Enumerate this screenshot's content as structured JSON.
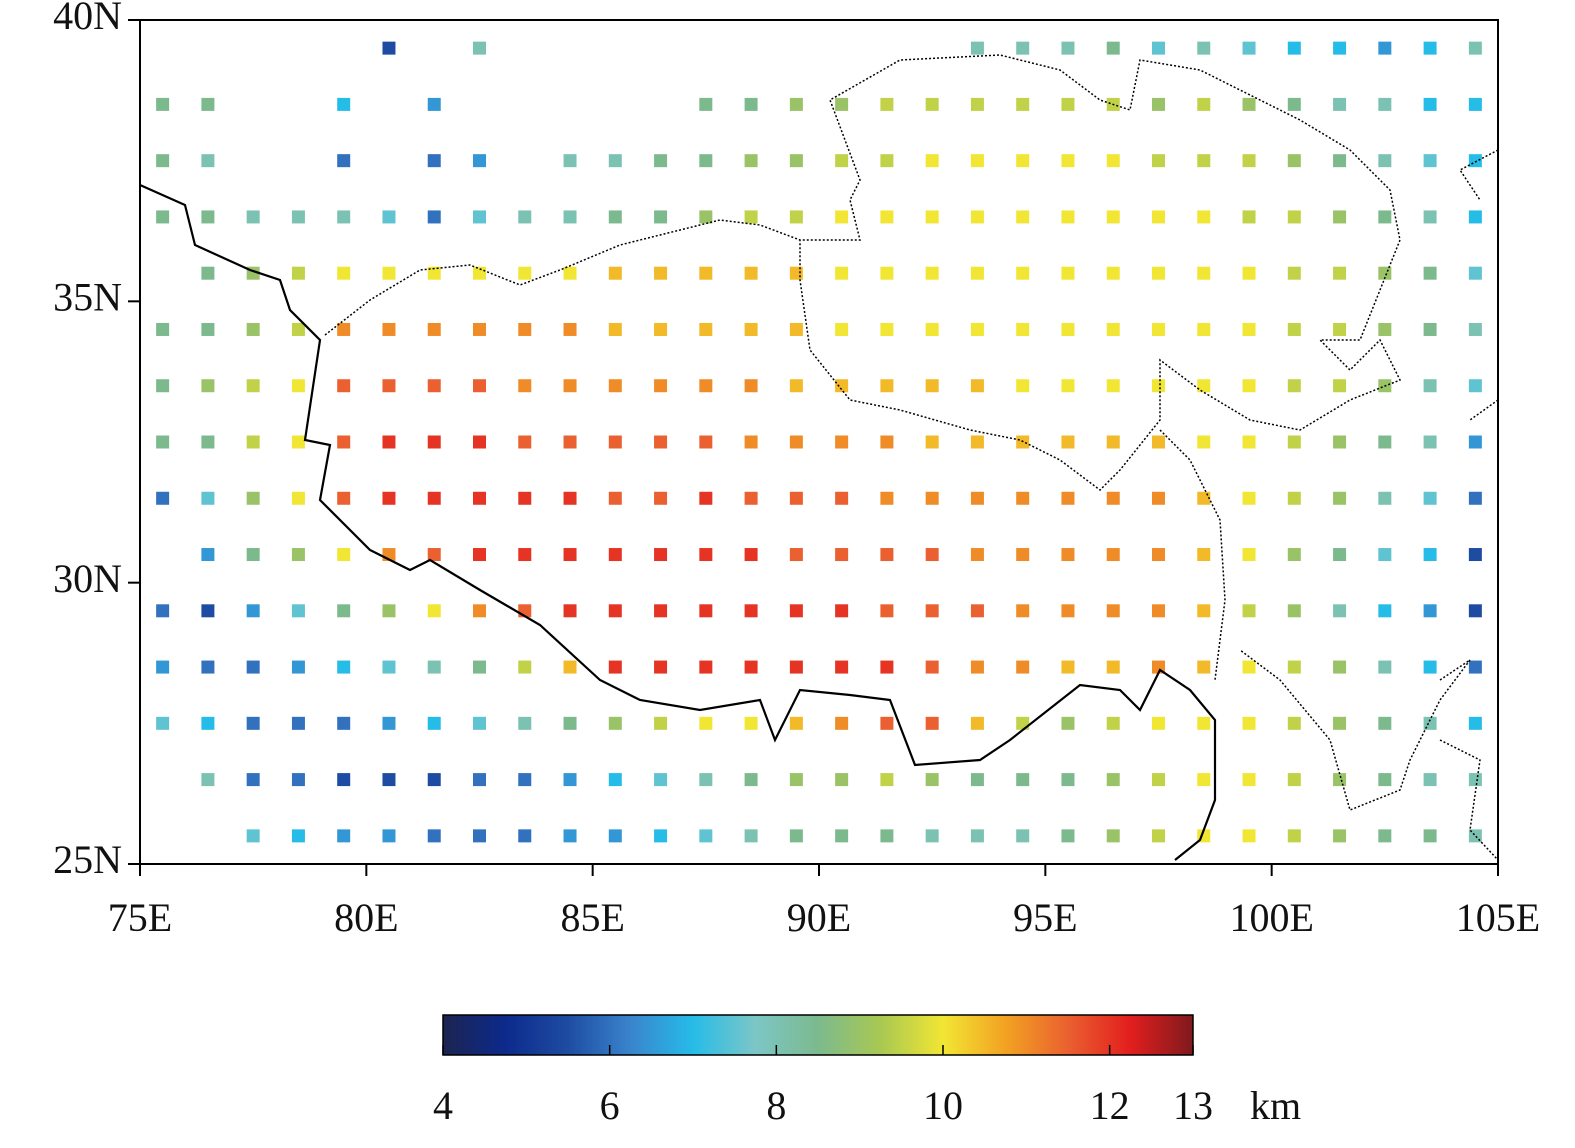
{
  "chart_data": {
    "type": "grid_map",
    "xlim": [
      75,
      105
    ],
    "ylim": [
      25,
      40
    ],
    "xticks": [
      {
        "value": 75,
        "label": "75E"
      },
      {
        "value": 80,
        "label": "80E"
      },
      {
        "value": 85,
        "label": "85E"
      },
      {
        "value": 90,
        "label": "90E"
      },
      {
        "value": 95,
        "label": "95E"
      },
      {
        "value": 100,
        "label": "100E"
      },
      {
        "value": 105,
        "label": "105E"
      }
    ],
    "yticks": [
      {
        "value": 25,
        "label": "25N"
      },
      {
        "value": 30,
        "label": "30N"
      },
      {
        "value": 35,
        "label": "35N"
      },
      {
        "value": 40,
        "label": "40N"
      }
    ],
    "x": [
      75.5,
      76.5,
      77.5,
      78.5,
      79.5,
      80.5,
      81.5,
      82.5,
      83.5,
      84.5,
      85.5,
      86.5,
      87.5,
      88.5,
      89.5,
      90.5,
      91.5,
      92.5,
      93.5,
      94.5,
      95.5,
      96.5,
      97.5,
      98.5,
      99.5,
      100.5,
      101.5,
      102.5,
      103.5,
      104.5
    ],
    "y": [
      39.5,
      38.5,
      37.5,
      36.5,
      35.5,
      34.5,
      33.5,
      32.5,
      31.5,
      30.5,
      29.5,
      28.5,
      27.5,
      26.5,
      25.5
    ],
    "values": [
      [
        null,
        null,
        null,
        null,
        null,
        5.5,
        null,
        8,
        null,
        null,
        null,
        null,
        null,
        null,
        null,
        null,
        null,
        null,
        8,
        8,
        8,
        8.5,
        7.5,
        8,
        7.5,
        7,
        7,
        6.5,
        7,
        8
      ],
      [
        8.5,
        8.5,
        null,
        null,
        7,
        null,
        6.5,
        null,
        null,
        null,
        null,
        null,
        8.5,
        8.5,
        9,
        9,
        9.5,
        9.5,
        9.5,
        9.5,
        9.5,
        9.5,
        9,
        9.5,
        9,
        8.5,
        8,
        8,
        7,
        7
      ],
      [
        8.5,
        8,
        null,
        null,
        6,
        null,
        6,
        6.5,
        null,
        8,
        8,
        8.5,
        8.5,
        9,
        9,
        9.5,
        9.5,
        10,
        10,
        10,
        10,
        10,
        9.5,
        9.5,
        9.5,
        9,
        8.5,
        8,
        7.5,
        7
      ],
      [
        8.5,
        8.5,
        8,
        8,
        8,
        7.5,
        6,
        7.5,
        8,
        8,
        8.5,
        8.5,
        9,
        9.5,
        9.5,
        10,
        10,
        10,
        10,
        10,
        10,
        10,
        10,
        10,
        9.5,
        9.5,
        9,
        8.5,
        8,
        7
      ],
      [
        null,
        8.5,
        9,
        9.5,
        10,
        10,
        10,
        10,
        10,
        10,
        10.5,
        10.5,
        10.5,
        10.5,
        10.5,
        10,
        10,
        10,
        10,
        10,
        10,
        10,
        10,
        10,
        10,
        9.5,
        9.5,
        9,
        8.5,
        7.5
      ],
      [
        8.5,
        8.5,
        9,
        9.5,
        11,
        11,
        11,
        11,
        11,
        11,
        10.5,
        10.5,
        10.5,
        10.5,
        10.5,
        10,
        10,
        10,
        10,
        10,
        10,
        10,
        10,
        10,
        10,
        9.5,
        9.5,
        9,
        8.5,
        8
      ],
      [
        8.5,
        9,
        9.5,
        10,
        11.5,
        11.5,
        11.5,
        11.5,
        11,
        11,
        11,
        11,
        11,
        11,
        10.5,
        10.5,
        10.5,
        10.5,
        10.5,
        10,
        10,
        10,
        10,
        10,
        10,
        9.5,
        9.5,
        9,
        8,
        7.5
      ],
      [
        8.5,
        8.5,
        9.5,
        10,
        11.5,
        12,
        12,
        12,
        11.5,
        11.5,
        11.5,
        11.5,
        11.5,
        11,
        11,
        11,
        11,
        10.5,
        10.5,
        10.5,
        10.5,
        10.5,
        10.5,
        10,
        10,
        9.5,
        9,
        8.5,
        8,
        6.5
      ],
      [
        6,
        7.5,
        9,
        10,
        11.5,
        12,
        12,
        12,
        12,
        12,
        11.5,
        11.5,
        12,
        11.5,
        11.5,
        11.5,
        11,
        11,
        11,
        11,
        11,
        11,
        11,
        10.5,
        10,
        9.5,
        9,
        8,
        7.5,
        6
      ],
      [
        null,
        6.5,
        8.5,
        9,
        10,
        11,
        11.5,
        12,
        12,
        12,
        12,
        12,
        12,
        12,
        11.5,
        11.5,
        11.5,
        11.5,
        11,
        11,
        11,
        11,
        11,
        10.5,
        10,
        9,
        8.5,
        7.5,
        7,
        5.5
      ],
      [
        6,
        5.5,
        6.5,
        7.5,
        8.5,
        9,
        10,
        11,
        11.5,
        12,
        12,
        12,
        12,
        12,
        12,
        12,
        11.5,
        11.5,
        11.5,
        11,
        11,
        11,
        11,
        10.5,
        9.5,
        9,
        8,
        7,
        6.5,
        5.5
      ],
      [
        6.5,
        6,
        6,
        6.5,
        7,
        7.5,
        8,
        8.5,
        9.5,
        10.5,
        12,
        12,
        12,
        12,
        12,
        12,
        12,
        11.5,
        11,
        11,
        10.5,
        10.5,
        11,
        10.5,
        10,
        9.5,
        9,
        8,
        7,
        6
      ],
      [
        7.5,
        7,
        6,
        6,
        6,
        6.5,
        7,
        7.5,
        8,
        8.5,
        9,
        9.5,
        10,
        10,
        10.5,
        11,
        11.5,
        11.5,
        10.5,
        9.5,
        9,
        9.5,
        10,
        10,
        10,
        9.5,
        9,
        8.5,
        8,
        7
      ],
      [
        null,
        8,
        6,
        6,
        5.5,
        5.5,
        5.5,
        6,
        6,
        6.5,
        7,
        7.5,
        8,
        8.5,
        9,
        9,
        9.5,
        9,
        8.5,
        8.5,
        8.5,
        9,
        9.5,
        10,
        10,
        9.5,
        9,
        8.5,
        8,
        8
      ],
      [
        null,
        null,
        7.5,
        7,
        6.5,
        6.5,
        6,
        6,
        6,
        6.5,
        6.5,
        7,
        7.5,
        8,
        8.5,
        8.5,
        8.5,
        8,
        8,
        8,
        8.5,
        9,
        9.5,
        10,
        10,
        9.5,
        9,
        8.5,
        8.5,
        8
      ]
    ],
    "colormap": [
      "#1c2450",
      "#0c2a8c",
      "#1e4ca2",
      "#3a84cc",
      "#26bce8",
      "#7cc6c6",
      "#7cba8e",
      "#a8c852",
      "#f2e634",
      "#f2a222",
      "#ea6030",
      "#e21e1e",
      "#7e1a1e"
    ],
    "colorbar": {
      "clim": [
        4,
        13
      ],
      "ticks": [
        4,
        6,
        8,
        10,
        12,
        13
      ],
      "label": "km"
    }
  }
}
